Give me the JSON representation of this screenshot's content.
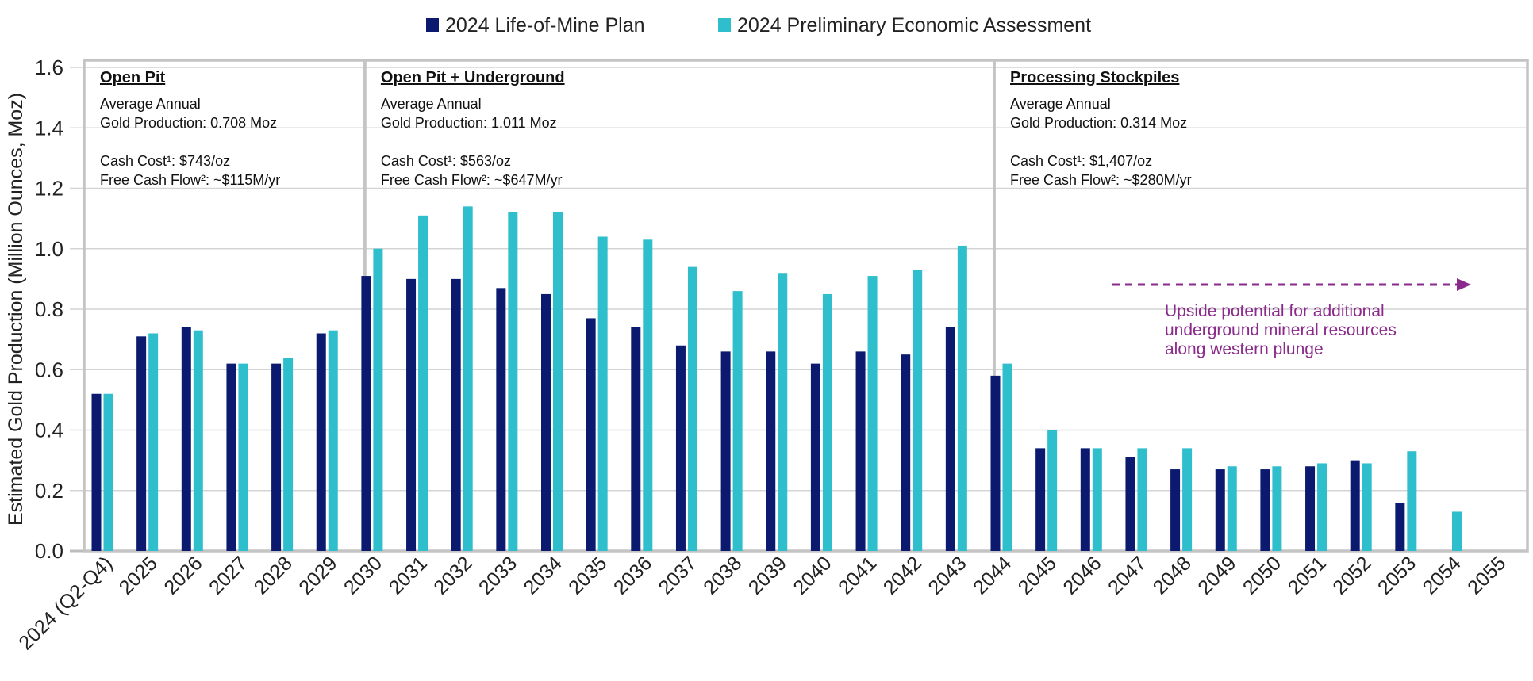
{
  "chart_data": {
    "type": "bar",
    "legend": {
      "position": "top",
      "items": [
        {
          "name": "2024 Life-of-Mine Plan",
          "color": "#0b1a6e"
        },
        {
          "name": "2024 Preliminary Economic Assessment",
          "color": "#2fbfcc"
        }
      ]
    },
    "ylabel": "Estimated Gold Production (Million Ounces, Moz)",
    "ylim": [
      0,
      1.6
    ],
    "yticks": [
      "0.0",
      "0.2",
      "0.4",
      "0.6",
      "0.8",
      "1.0",
      "1.2",
      "1.4",
      "1.6"
    ],
    "grid": true,
    "categories": [
      "2024 (Q2-Q4)",
      "2025",
      "2026",
      "2027",
      "2028",
      "2029",
      "2030",
      "2031",
      "2032",
      "2033",
      "2034",
      "2035",
      "2036",
      "2037",
      "2038",
      "2039",
      "2040",
      "2041",
      "2042",
      "2043",
      "2044",
      "2045",
      "2046",
      "2047",
      "2048",
      "2049",
      "2050",
      "2051",
      "2052",
      "2053",
      "2054",
      "2055"
    ],
    "series": [
      {
        "name": "2024 Life-of-Mine Plan",
        "color": "#0b1a6e",
        "values": [
          0.52,
          0.71,
          0.74,
          0.62,
          0.62,
          0.72,
          0.91,
          0.9,
          0.9,
          0.87,
          0.85,
          0.77,
          0.74,
          0.68,
          0.66,
          0.66,
          0.62,
          0.66,
          0.65,
          0.74,
          0.58,
          0.34,
          0.34,
          0.31,
          0.27,
          0.27,
          0.27,
          0.28,
          0.3,
          0.16,
          null,
          null
        ]
      },
      {
        "name": "2024 Preliminary Economic Assessment",
        "color": "#2fbfcc",
        "values": [
          0.52,
          0.72,
          0.73,
          0.62,
          0.64,
          0.73,
          1.0,
          1.11,
          1.14,
          1.12,
          1.12,
          1.04,
          1.03,
          0.94,
          0.86,
          0.92,
          0.85,
          0.91,
          0.93,
          1.01,
          0.62,
          0.4,
          0.34,
          0.34,
          0.34,
          0.28,
          0.28,
          0.29,
          0.29,
          0.33,
          0.13,
          null
        ]
      }
    ],
    "phases": [
      {
        "title": "Open Pit",
        "start": "2024 (Q2-Q4)",
        "end": "2029",
        "lines": [
          "Average Annual",
          "Gold Production: 0.708 Moz",
          "",
          "Cash Cost¹: $743/oz",
          "Free Cash Flow²: ~$115M/yr"
        ]
      },
      {
        "title": "Open Pit + Underground",
        "start": "2030",
        "end": "2043",
        "lines": [
          "Average Annual",
          "Gold Production: 1.011 Moz",
          "",
          "Cash Cost¹: $563/oz",
          "Free Cash Flow²: ~$647M/yr"
        ]
      },
      {
        "title": "Processing Stockpiles",
        "start": "2044",
        "end": "2055",
        "lines": [
          "Average Annual",
          "Gold Production: 0.314 Moz",
          "",
          "Cash Cost¹: $1,407/oz",
          "Free Cash Flow²: ~$280M/yr"
        ]
      }
    ],
    "annotation": {
      "lines": [
        "Upside potential for additional",
        "underground mineral resources",
        "along western plunge"
      ],
      "color": "#8b2a8c",
      "arrow": "dashed right arrow"
    }
  }
}
